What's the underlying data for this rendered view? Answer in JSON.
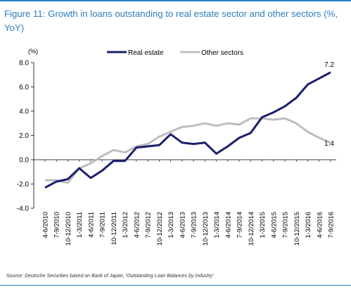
{
  "figure": {
    "title": "Figure 11: Growth in loans outstanding to real estate sector and other sectors (%, YoY)",
    "source": "Source: Deutsche Securities based on Bank of Japan, 'Outstanding Loan Balances by Industry'",
    "accent_color": "#2a7fbf"
  },
  "chart_data": {
    "type": "line",
    "ylabel": "(%)",
    "ylim": [
      -4.0,
      8.0
    ],
    "yticks": [
      "8.0",
      "6.0",
      "4.0",
      "2.0",
      "0.0",
      "-2.0",
      "-4.0"
    ],
    "grid": false,
    "legend_position": "top",
    "x": [
      "4-6/2010",
      "7-9/2010",
      "10-12/2010",
      "1-3/2011",
      "4-6/2011",
      "7-9/2011",
      "10-12/2011",
      "1-3/2012",
      "4-6/2012",
      "7-9/2012",
      "10-12/2012",
      "1-3/2013",
      "4-6/2013",
      "7-9/2013",
      "10-12/2013",
      "1-3/2014",
      "4-6/2014",
      "7-9/2014",
      "10-12/2014",
      "1-3/2015",
      "4-6/2015",
      "7-9/2015",
      "10-12/2015",
      "1-3/2016",
      "4-6/2016",
      "7-9/2016"
    ],
    "series": [
      {
        "name": "Real estate",
        "color": "#1a1f6e",
        "values": [
          -2.3,
          -1.8,
          -1.6,
          -0.7,
          -1.5,
          -0.9,
          -0.1,
          -0.1,
          1.0,
          1.1,
          1.2,
          2.1,
          1.4,
          1.3,
          1.4,
          0.5,
          1.1,
          1.8,
          2.2,
          3.5,
          3.9,
          4.4,
          5.1,
          6.2,
          6.7,
          7.2
        ]
      },
      {
        "name": "Other sectors",
        "color": "#bdbdbd",
        "values": [
          -1.7,
          -1.7,
          -1.9,
          -0.7,
          -0.3,
          0.3,
          0.8,
          0.6,
          1.1,
          1.3,
          1.9,
          2.3,
          2.7,
          2.8,
          3.0,
          2.8,
          3.0,
          2.9,
          3.4,
          3.4,
          3.3,
          3.4,
          3.0,
          2.3,
          1.8,
          1.4
        ]
      }
    ],
    "annotations": [
      {
        "label": "7.2",
        "series": 0,
        "index": 25
      },
      {
        "label": "1.4",
        "series": 1,
        "index": 25
      }
    ]
  }
}
